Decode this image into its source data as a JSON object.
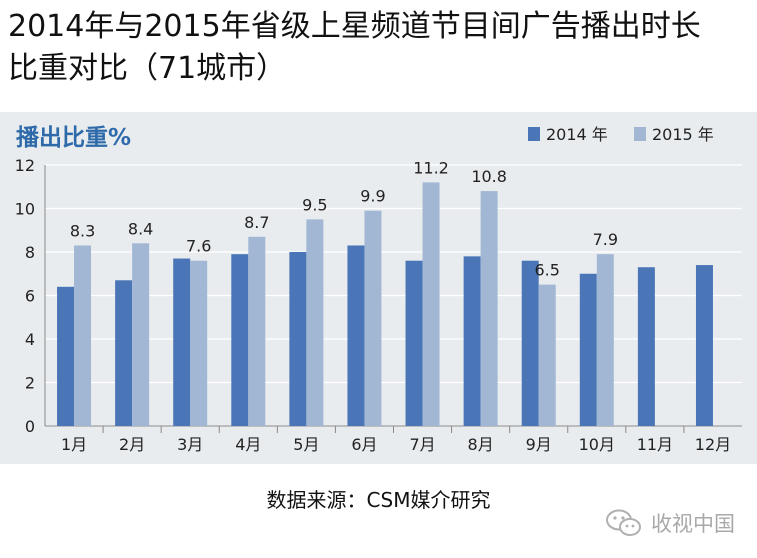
{
  "title_line1": "2014年与2015年省级上星频道节目间广告播出时长",
  "title_line2": "比重对比（71城市）",
  "source": "数据来源：CSM媒介研究",
  "watermark": "收视中国",
  "chart_data": {
    "type": "bar",
    "title": "播出比重%",
    "xlabel": "",
    "ylabel": "",
    "categories": [
      "1月",
      "2月",
      "3月",
      "4月",
      "5月",
      "6月",
      "7月",
      "8月",
      "9月",
      "10月",
      "11月",
      "12月"
    ],
    "series": [
      {
        "name": "2014 年",
        "color": "#4a76b8",
        "values": [
          6.4,
          6.7,
          7.7,
          7.9,
          8.0,
          8.3,
          7.6,
          7.8,
          7.6,
          7.0,
          7.3,
          7.4
        ]
      },
      {
        "name": "2015 年",
        "color": "#a2b7d4",
        "values": [
          8.3,
          8.4,
          7.6,
          8.7,
          9.5,
          9.9,
          11.2,
          10.8,
          6.5,
          7.9,
          null,
          null
        ]
      }
    ],
    "data_labels": [
      "8.3",
      "8.4",
      "7.6",
      "8.7",
      "9.5",
      "9.9",
      "11.2",
      "10.8",
      "6.5",
      "7.9"
    ],
    "ylim": [
      0,
      12
    ],
    "yticks": [
      "0",
      "2",
      "4",
      "6",
      "8",
      "10",
      "12"
    ],
    "grid": true,
    "legend": "top-right",
    "title_color": "#2e6aaa"
  }
}
